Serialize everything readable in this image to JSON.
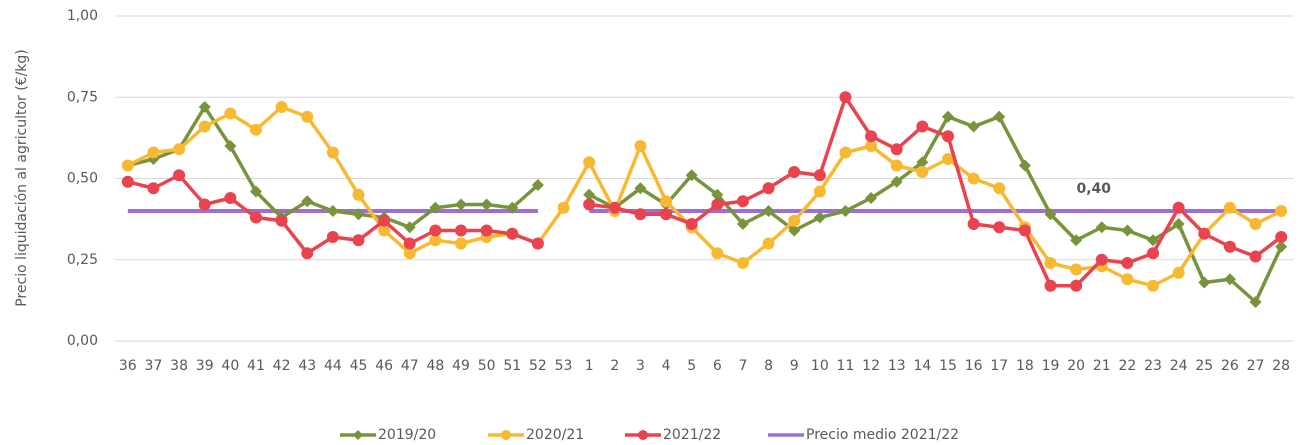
{
  "chart_data": {
    "type": "line",
    "y_label": "Precio liquidación al agricultor (€/kg)",
    "categories": [
      "36",
      "37",
      "38",
      "39",
      "40",
      "41",
      "42",
      "43",
      "44",
      "45",
      "46",
      "47",
      "48",
      "49",
      "50",
      "51",
      "52",
      "53",
      "1",
      "2",
      "3",
      "4",
      "5",
      "6",
      "7",
      "8",
      "9",
      "10",
      "11",
      "12",
      "13",
      "14",
      "15",
      "16",
      "17",
      "18",
      "19",
      "20",
      "21",
      "22",
      "23",
      "24",
      "25",
      "26",
      "27",
      "28"
    ],
    "series": [
      {
        "name": "2019/20",
        "color": "#77933c",
        "marker": "diamond",
        "values": [
          0.54,
          0.56,
          0.59,
          0.72,
          0.6,
          0.46,
          0.38,
          0.43,
          0.4,
          0.39,
          0.38,
          0.35,
          0.41,
          0.42,
          0.42,
          0.41,
          0.48,
          null,
          0.45,
          0.41,
          0.47,
          0.42,
          0.51,
          0.45,
          0.36,
          0.4,
          0.34,
          0.38,
          0.4,
          0.44,
          0.49,
          0.55,
          0.69,
          0.66,
          0.69,
          0.54,
          0.39,
          0.31,
          0.35,
          0.34,
          0.31,
          0.36,
          0.18,
          0.19,
          0.12,
          0.29
        ]
      },
      {
        "name": "2020/21",
        "color": "#f8b932",
        "marker": "circle",
        "values": [
          0.54,
          0.58,
          0.59,
          0.66,
          0.7,
          0.65,
          0.72,
          0.69,
          0.58,
          0.45,
          0.34,
          0.27,
          0.31,
          0.3,
          0.32,
          0.33,
          0.3,
          0.41,
          0.55,
          0.4,
          0.6,
          0.43,
          0.35,
          0.27,
          0.24,
          0.3,
          0.37,
          0.46,
          0.58,
          0.6,
          0.54,
          0.52,
          0.56,
          0.5,
          0.47,
          0.35,
          0.24,
          0.22,
          0.23,
          0.19,
          0.17,
          0.21,
          0.33,
          0.41,
          0.36,
          0.4
        ]
      },
      {
        "name": "2021/22",
        "color": "#e8434f",
        "marker": "circle",
        "values": [
          0.49,
          0.47,
          0.51,
          0.42,
          0.44,
          0.38,
          0.37,
          0.27,
          0.32,
          0.31,
          0.37,
          0.3,
          0.34,
          0.34,
          0.34,
          0.33,
          0.3,
          null,
          0.42,
          0.41,
          0.39,
          0.39,
          0.36,
          0.42,
          0.43,
          0.47,
          0.52,
          0.51,
          0.75,
          0.63,
          0.59,
          0.66,
          0.63,
          0.36,
          0.35,
          0.34,
          0.17,
          0.17,
          0.25,
          0.24,
          0.27,
          0.41,
          0.33,
          0.29,
          0.26,
          0.32
        ]
      },
      {
        "name": "Precio medio 2021/22",
        "color": "#9e6fd0",
        "marker": "none",
        "values": [
          0.4,
          0.4,
          0.4,
          0.4,
          0.4,
          0.4,
          0.4,
          0.4,
          0.4,
          0.4,
          0.4,
          0.4,
          0.4,
          0.4,
          0.4,
          0.4,
          0.4,
          null,
          0.4,
          0.4,
          0.4,
          0.4,
          0.4,
          0.4,
          0.4,
          0.4,
          0.4,
          0.4,
          0.4,
          0.4,
          0.4,
          0.4,
          0.4,
          0.4,
          0.4,
          0.4,
          0.4,
          0.4,
          0.4,
          0.4,
          0.4,
          0.4,
          0.4,
          0.4,
          0.4,
          0.4
        ]
      }
    ],
    "annotations": [
      {
        "text": "0,40",
        "value": 0.4
      }
    ],
    "ylim": [
      0,
      1
    ],
    "yticks": [
      {
        "value": 0,
        "label": "0,00"
      },
      {
        "value": 0.25,
        "label": "0,25"
      },
      {
        "value": 0.5,
        "label": "0,50"
      },
      {
        "value": 0.75,
        "label": "0,75"
      },
      {
        "value": 1,
        "label": "1,00"
      }
    ],
    "grid": true,
    "legend": "bottom"
  }
}
